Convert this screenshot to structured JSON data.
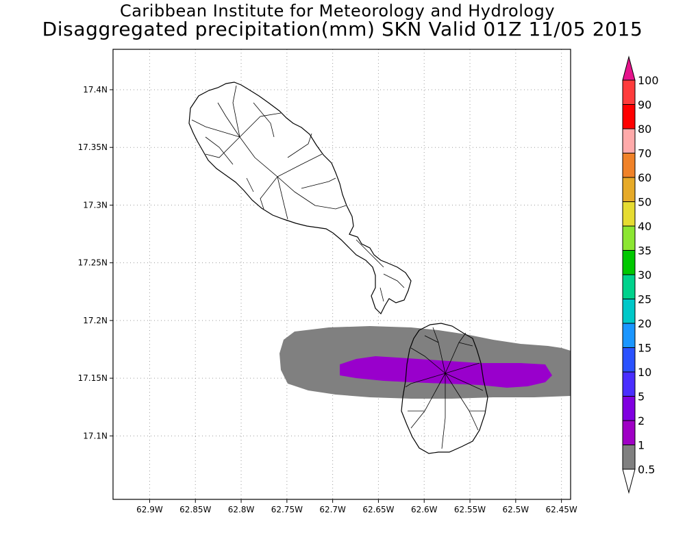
{
  "title_line1": "Caribbean Institute for Meteorology and Hydrology",
  "title_line2": "Disaggregated precipitation(mm) SKN Valid 01Z 11/05 2015",
  "map": {
    "lon_range": [
      -62.94,
      -62.44
    ],
    "lat_range": [
      17.045,
      17.435
    ],
    "grid": "dotted",
    "x_ticks": [
      {
        "value": -62.9,
        "label": "62.9W"
      },
      {
        "value": -62.85,
        "label": "62.85W"
      },
      {
        "value": -62.8,
        "label": "62.8W"
      },
      {
        "value": -62.75,
        "label": "62.75W"
      },
      {
        "value": -62.7,
        "label": "62.7W"
      },
      {
        "value": -62.65,
        "label": "62.65W"
      },
      {
        "value": -62.6,
        "label": "62.6W"
      },
      {
        "value": -62.55,
        "label": "62.55W"
      },
      {
        "value": -62.5,
        "label": "62.5W"
      },
      {
        "value": -62.45,
        "label": "62.45W"
      }
    ],
    "y_ticks": [
      {
        "value": 17.4,
        "label": "17.4N"
      },
      {
        "value": 17.35,
        "label": "17.35N"
      },
      {
        "value": 17.3,
        "label": "17.3N"
      },
      {
        "value": 17.25,
        "label": "17.25N"
      },
      {
        "value": 17.2,
        "label": "17.2N"
      },
      {
        "value": 17.15,
        "label": "17.15N"
      },
      {
        "value": 17.1,
        "label": "17.1N"
      }
    ],
    "precip_areas": [
      {
        "level": "0.5-1",
        "color": "#808080"
      },
      {
        "level": "2-5",
        "color": "#9900cc"
      }
    ]
  },
  "colorbar": {
    "labels": [
      "0.5",
      "1",
      "2",
      "5",
      "10",
      "15",
      "20",
      "25",
      "30",
      "35",
      "40",
      "50",
      "60",
      "70",
      "80",
      "90",
      "100"
    ],
    "colors": [
      "#808080",
      "#9f00c5",
      "#8000e0",
      "#4a2eff",
      "#2a52ff",
      "#1a96ff",
      "#00c8c8",
      "#00d28c",
      "#00c800",
      "#8ce632",
      "#e6dc32",
      "#e6aa28",
      "#f08228",
      "#ffaaaa",
      "#ff0000",
      "#ff3c3c"
    ],
    "over_color": "#e6148c",
    "under_color": "#ffffff"
  }
}
